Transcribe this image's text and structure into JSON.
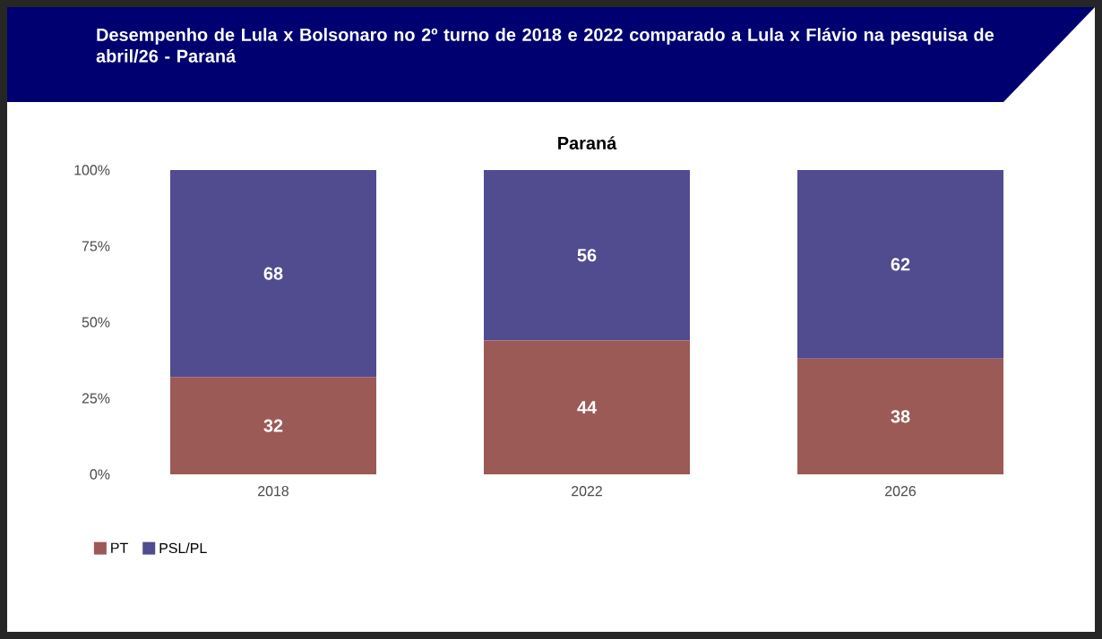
{
  "chart_data": {
    "type": "bar",
    "stacked": true,
    "title": "Desempenho de Lula x Bolsonaro no 2º turno de 2018 e 2022 comparado a Lula x Flávio na pesquisa de abril/26 - Paraná",
    "subtitle": "Paraná",
    "categories": [
      "2018",
      "2022",
      "2026"
    ],
    "series": [
      {
        "name": "PT",
        "color": "#9b5a56",
        "values": [
          32,
          44,
          38
        ]
      },
      {
        "name": "PSL/PL",
        "color": "#514b90",
        "values": [
          68,
          56,
          62
        ]
      }
    ],
    "ylim": [
      0,
      100
    ],
    "yticks": [
      {
        "value": 0,
        "label": "0%"
      },
      {
        "value": 25,
        "label": "25%"
      },
      {
        "value": 50,
        "label": "50%"
      },
      {
        "value": 75,
        "label": "75%"
      },
      {
        "value": 100,
        "label": "100%"
      }
    ],
    "data_labels": true,
    "legend": "bottom left"
  }
}
